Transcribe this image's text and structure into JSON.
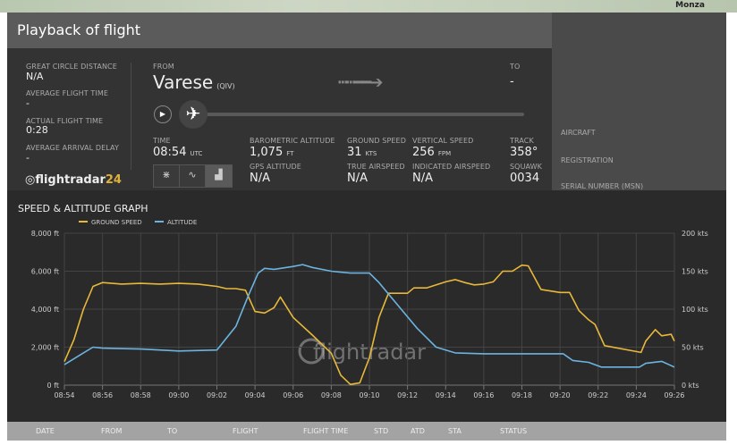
{
  "map": {
    "label": "Monza"
  },
  "title": "Playback of flight",
  "stats": [
    {
      "label": "GREAT CIRCLE DISTANCE",
      "value": "N/A"
    },
    {
      "label": "AVERAGE FLIGHT TIME",
      "value": "-"
    },
    {
      "label": "ACTUAL FLIGHT TIME",
      "value": "0:28"
    },
    {
      "label": "AVERAGE ARRIVAL DELAY",
      "value": "-"
    }
  ],
  "logo": {
    "text": "flightradar",
    "num": "24"
  },
  "route": {
    "from_label": "FROM",
    "from_city": "Varese",
    "from_code": "(QIV)",
    "to_label": "TO",
    "to_value": "-"
  },
  "progress": 0.0,
  "readouts": {
    "time_label": "TIME",
    "time": "08:54",
    "time_unit": "UTC",
    "baro_label": "BAROMETRIC ALTITUDE",
    "baro": "1,075",
    "baro_unit": "FT",
    "gs_label": "GROUND SPEED",
    "gs": "31",
    "gs_unit": "KTS",
    "vs_label": "VERTICAL SPEED",
    "vs": "256",
    "vs_unit": "FPM",
    "track_label": "TRACK",
    "track": "358°",
    "gps_label": "GPS ALTITUDE",
    "gps": "N/A",
    "tas_label": "TRUE AIRSPEED",
    "tas": "N/A",
    "ias_label": "INDICATED AIRSPEED",
    "ias": "N/A",
    "squawk_label": "SQUAWK",
    "squawk": "0034"
  },
  "view_buttons": [
    {
      "icon": "collapse-icon",
      "glyph": "⋇"
    },
    {
      "icon": "route-icon",
      "glyph": "∿"
    },
    {
      "icon": "graph-icon",
      "glyph": "▟",
      "active": true
    }
  ],
  "aircraft": {
    "aircraft_label": "AIRCRAFT",
    "registration_label": "REGISTRATION",
    "msn_label": "SERIAL NUMBER (MSN)"
  },
  "chart_data": {
    "type": "line",
    "title": "SPEED & ALTITUDE GRAPH",
    "grid": true,
    "legend": "top-left",
    "xlabels": [
      "08:54",
      "08:56",
      "08:58",
      "09:00",
      "09:02",
      "09:04",
      "09:06",
      "09:08",
      "09:10",
      "09:12",
      "09:14",
      "09:16",
      "09:18",
      "09:20",
      "09:22",
      "09:24",
      "09:26"
    ],
    "xlim": [
      "08:54",
      "09:26"
    ],
    "y_left": {
      "ticks": [
        "0 ft",
        "2,000 ft",
        "4,000 ft",
        "6,000 ft",
        "8,000 ft"
      ],
      "lim": [
        0,
        8000
      ]
    },
    "y_right": {
      "ticks": [
        "0 kts",
        "50 kts",
        "100 kts",
        "150 kts",
        "200 kts"
      ],
      "lim": [
        0,
        200
      ]
    },
    "series": [
      {
        "name": "GROUND SPEED",
        "axis": "right",
        "color": "#e8b83a",
        "points": [
          [
            "08:54",
            31
          ],
          [
            "08:54:30",
            60
          ],
          [
            "08:55",
            100
          ],
          [
            "08:55:30",
            130
          ],
          [
            "08:56",
            135
          ],
          [
            "08:57",
            133
          ],
          [
            "08:58",
            134
          ],
          [
            "08:59",
            133
          ],
          [
            "09:00",
            134
          ],
          [
            "09:01",
            133
          ],
          [
            "09:02",
            130
          ],
          [
            "09:02:30",
            127
          ],
          [
            "09:03",
            127
          ],
          [
            "09:03:30",
            125
          ],
          [
            "09:04",
            97
          ],
          [
            "09:04:30",
            95
          ],
          [
            "09:05",
            102
          ],
          [
            "09:05:20",
            116
          ],
          [
            "09:06",
            89
          ],
          [
            "09:07",
            66
          ],
          [
            "09:08",
            42
          ],
          [
            "09:08:30",
            13
          ],
          [
            "09:09",
            1
          ],
          [
            "09:09:30",
            3
          ],
          [
            "09:10",
            36
          ],
          [
            "09:10:30",
            89
          ],
          [
            "09:11",
            121
          ],
          [
            "09:12",
            121
          ],
          [
            "09:12:20",
            128
          ],
          [
            "09:13",
            128
          ],
          [
            "09:14",
            136
          ],
          [
            "09:14:30",
            139
          ],
          [
            "09:15",
            135
          ],
          [
            "09:15:30",
            132
          ],
          [
            "09:16",
            133
          ],
          [
            "09:16:30",
            136
          ],
          [
            "09:17",
            150
          ],
          [
            "09:17:30",
            150
          ],
          [
            "09:18",
            158
          ],
          [
            "09:18:20",
            157
          ],
          [
            "09:19",
            126
          ],
          [
            "09:20",
            122
          ],
          [
            "09:20:30",
            122
          ],
          [
            "09:21",
            98
          ],
          [
            "09:21:30",
            86
          ],
          [
            "09:21:50",
            80
          ],
          [
            "09:22:20",
            52
          ],
          [
            "09:24:15",
            43
          ],
          [
            "09:24:30",
            58
          ],
          [
            "09:25",
            73
          ],
          [
            "09:25:20",
            65
          ],
          [
            "09:25:50",
            67
          ],
          [
            "09:26",
            58
          ]
        ]
      },
      {
        "name": "ALTITUDE",
        "axis": "left",
        "color": "#6cb4e0",
        "points": [
          [
            "08:54",
            1080
          ],
          [
            "08:55",
            1700
          ],
          [
            "08:55:30",
            2000
          ],
          [
            "08:56",
            1950
          ],
          [
            "08:58",
            1900
          ],
          [
            "09:00",
            1800
          ],
          [
            "09:02",
            1850
          ],
          [
            "09:03",
            3100
          ],
          [
            "09:03:40",
            4750
          ],
          [
            "09:04:10",
            5900
          ],
          [
            "09:04:30",
            6150
          ],
          [
            "09:05",
            6100
          ],
          [
            "09:06",
            6250
          ],
          [
            "09:06:30",
            6350
          ],
          [
            "09:07",
            6200
          ],
          [
            "09:08",
            6000
          ],
          [
            "09:09",
            5900
          ],
          [
            "09:10",
            5900
          ],
          [
            "09:10:30",
            5400
          ],
          [
            "09:11",
            4800
          ],
          [
            "09:12",
            3600
          ],
          [
            "09:12:30",
            3000
          ],
          [
            "09:13:30",
            2000
          ],
          [
            "09:14:30",
            1700
          ],
          [
            "09:16",
            1650
          ],
          [
            "09:18",
            1650
          ],
          [
            "09:20:10",
            1650
          ],
          [
            "09:20:40",
            1300
          ],
          [
            "09:21:30",
            1200
          ],
          [
            "09:22:10",
            950
          ],
          [
            "09:24:10",
            950
          ],
          [
            "09:24:30",
            1150
          ],
          [
            "09:25:20",
            1250
          ],
          [
            "09:26",
            950
          ]
        ]
      }
    ]
  },
  "table": {
    "headers": [
      "DATE",
      "FROM",
      "TO",
      "FLIGHT",
      "FLIGHT TIME",
      "STD",
      "ATD",
      "STA",
      "STATUS"
    ]
  }
}
